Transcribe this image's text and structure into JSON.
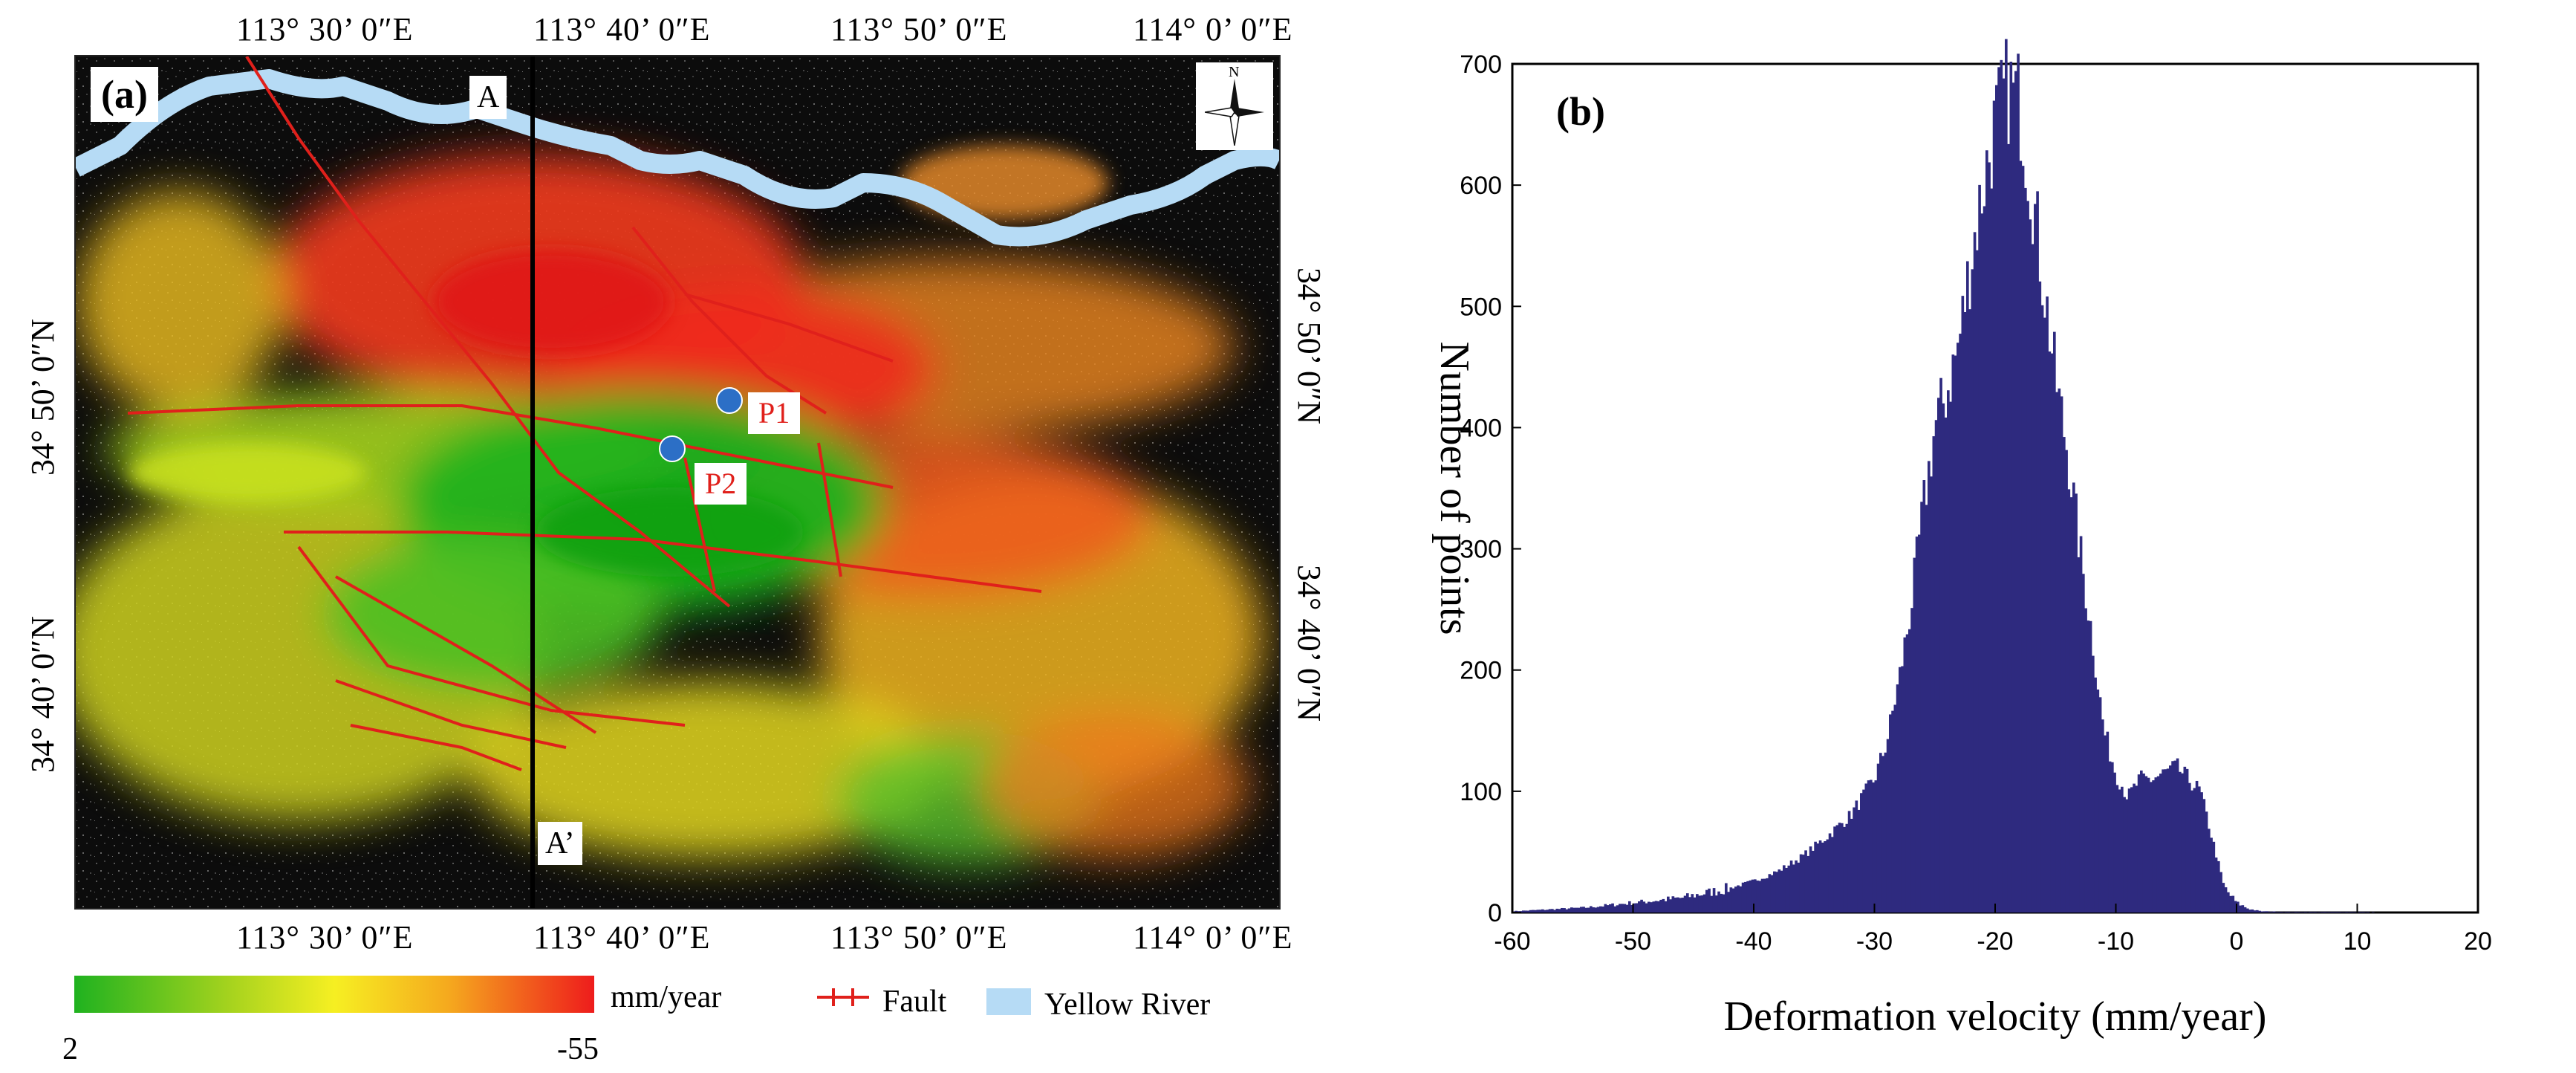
{
  "map": {
    "panel_label": "(a)",
    "top_lon_ticks": [
      "113° 30’ 0″E",
      "113° 40’ 0″E",
      "113° 50’ 0″E",
      "114° 0’ 0″E"
    ],
    "bottom_lon_ticks": [
      "113° 30’ 0″E",
      "113° 40’ 0″E",
      "113° 50’ 0″E",
      "114° 0’ 0″E"
    ],
    "left_lat_ticks": [
      "34° 50’ 0″N",
      "34° 40’ 0″N"
    ],
    "right_lat_ticks": [
      "34° 50’ 0″N",
      "34° 40’ 0″N"
    ],
    "profile_start": "A",
    "profile_end": "A’",
    "point1": "P1",
    "point2": "P2",
    "north_arrow": "N",
    "colors": {
      "high": "#1fb21f",
      "mid": "#f6ef22",
      "low": "#ee1c1c",
      "fault": "#e0201b",
      "river": "#b6dbf5",
      "point": "#2c6fc6"
    }
  },
  "legend": {
    "unit": "mm/year",
    "min_label": "2",
    "max_label": "-55",
    "fault_label": "Fault",
    "river_label": "Yellow River"
  },
  "chart_data": {
    "type": "bar",
    "panel_label": "(b)",
    "title": "",
    "xlabel": "Deformation velocity (mm/year)",
    "ylabel": "Number of points",
    "xlim": [
      -60,
      20
    ],
    "ylim": [
      0,
      700
    ],
    "xticks": [
      -60,
      -50,
      -40,
      -30,
      -20,
      -10,
      0,
      10,
      20
    ],
    "yticks": [
      0,
      100,
      200,
      300,
      400,
      500,
      600,
      700
    ],
    "bar_color": "#2e2a7f",
    "x": [
      -60,
      -58,
      -56,
      -54,
      -52,
      -50,
      -48,
      -46,
      -44,
      -42,
      -40,
      -38,
      -36,
      -34,
      -32,
      -30,
      -29,
      -28,
      -27,
      -26,
      -25,
      -24,
      -23,
      -22,
      -21,
      -20,
      -19,
      -18,
      -17,
      -16,
      -15,
      -14,
      -13,
      -12,
      -11,
      -10,
      -9,
      -8,
      -7,
      -6,
      -5,
      -4,
      -3,
      -2,
      -1,
      0,
      1,
      2,
      4,
      6,
      8,
      10,
      12
    ],
    "values": [
      1,
      2,
      3,
      4,
      6,
      8,
      10,
      12,
      16,
      20,
      26,
      34,
      46,
      62,
      80,
      110,
      140,
      190,
      250,
      330,
      400,
      430,
      470,
      540,
      600,
      650,
      680,
      670,
      600,
      520,
      440,
      380,
      300,
      230,
      150,
      115,
      95,
      110,
      110,
      115,
      120,
      110,
      100,
      60,
      20,
      8,
      3,
      1,
      0.5,
      0.5,
      0.5,
      0.5,
      0.2
    ]
  }
}
